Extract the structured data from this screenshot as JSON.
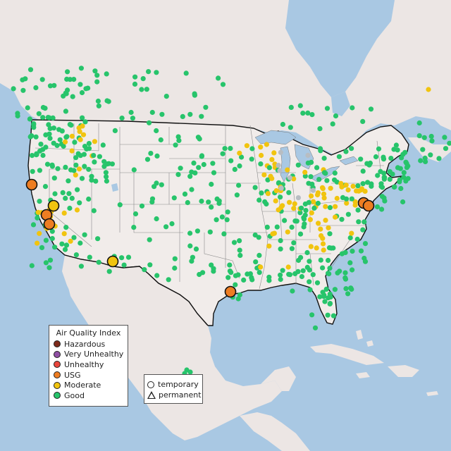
{
  "legend": {
    "title": "Air Quality Index",
    "categories": [
      {
        "label": "Hazardous",
        "color": "#7e2a1b"
      },
      {
        "label": "Very Unhealthy",
        "color": "#8f4fa3"
      },
      {
        "label": "Unhealthy",
        "color": "#e8453c"
      },
      {
        "label": "USG",
        "color": "#ee7d22"
      },
      {
        "label": "Moderate",
        "color": "#f1c40f"
      },
      {
        "label": "Good",
        "color": "#27c46b"
      }
    ]
  },
  "monitor_types": {
    "temporary": "temporary",
    "permanent": "permanent"
  },
  "colors": {
    "water": "#a9c8e3",
    "land": "#ece6e4",
    "usa_land": "#f1ecea",
    "border": "#111111",
    "state_lines": "#8a8a8a",
    "no_data": "#b8bdc2"
  }
}
